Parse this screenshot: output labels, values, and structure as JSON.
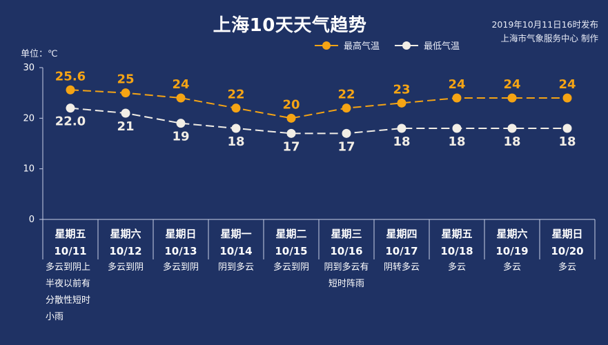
{
  "header": {
    "title": "上海10天天气趋势",
    "publish_line1": "2019年10月11日16时发布",
    "publish_line2": "上海市气象服务中心 制作",
    "unit_label": "单位：℃"
  },
  "legend": {
    "high_label": "最高气温",
    "low_label": "最低气温"
  },
  "colors": {
    "background": "#1f3264",
    "high": "#f5a414",
    "low": "#f2eee6",
    "axis": "#c9d0e6"
  },
  "chart_data": {
    "type": "line",
    "categories": [
      {
        "day": "星期五",
        "date": "10/11"
      },
      {
        "day": "星期六",
        "date": "10/12"
      },
      {
        "day": "星期日",
        "date": "10/13"
      },
      {
        "day": "星期一",
        "date": "10/14"
      },
      {
        "day": "星期二",
        "date": "10/15"
      },
      {
        "day": "星期三",
        "date": "10/16"
      },
      {
        "day": "星期四",
        "date": "10/17"
      },
      {
        "day": "星期五",
        "date": "10/18"
      },
      {
        "day": "星期六",
        "date": "10/19"
      },
      {
        "day": "星期日",
        "date": "10/20"
      }
    ],
    "series": [
      {
        "name": "最高气温",
        "values": [
          25.6,
          25,
          24,
          22,
          20,
          22,
          23,
          24,
          24,
          24
        ],
        "labels": [
          "25.6",
          "25",
          "24",
          "22",
          "20",
          "22",
          "23",
          "24",
          "24",
          "24"
        ]
      },
      {
        "name": "最低气温",
        "values": [
          22.0,
          21,
          19,
          18,
          17,
          17,
          18,
          18,
          18,
          18
        ],
        "labels": [
          "22.0",
          "21",
          "19",
          "18",
          "17",
          "17",
          "18",
          "18",
          "18",
          "18"
        ]
      }
    ],
    "y_ticks": [
      "0",
      "10",
      "20",
      "30"
    ],
    "ylim": [
      0,
      30
    ],
    "grid": false,
    "legend_position": "top-center",
    "weather": [
      [
        "多云到阴上",
        "半夜以前有",
        "分散性短时",
        "小雨"
      ],
      [
        "多云到阴"
      ],
      [
        "多云到阴"
      ],
      [
        "阴到多云"
      ],
      [
        "多云到阴"
      ],
      [
        "阴到多云有",
        "短时阵雨"
      ],
      [
        "阴转多云"
      ],
      [
        "多云"
      ],
      [
        "多云"
      ],
      [
        "多云"
      ]
    ]
  }
}
